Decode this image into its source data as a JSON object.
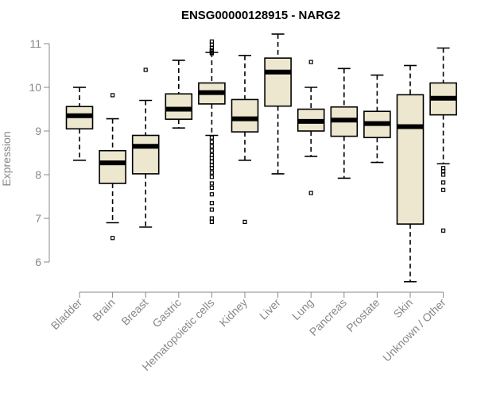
{
  "chart_data": {
    "type": "box",
    "title": "ENSG00000128915 - NARG2",
    "xlabel": "",
    "ylabel": "Expression",
    "ylim": [
      5.6,
      11.2
    ],
    "yticks": [
      6,
      7,
      8,
      9,
      10,
      11
    ],
    "ytick_labels": [
      "6",
      "7",
      "8",
      "9",
      "10",
      "11"
    ],
    "grid": false,
    "legend": "none",
    "colors": {
      "box_fill": "#ede7cf",
      "stroke": "#000000",
      "axis": "#888888"
    },
    "categories": [
      "Bladder",
      "Brain",
      "Breast",
      "Gastric",
      "Hematopoietic cells",
      "Kidney",
      "Liver",
      "Lung",
      "Pancreas",
      "Prostate",
      "Skin",
      "Unknown / Other"
    ],
    "boxes": [
      {
        "category": "Bladder",
        "whisker_low": 8.33,
        "q1": 9.05,
        "median": 9.35,
        "q3": 9.56,
        "whisker_high": 10.0,
        "outliers": []
      },
      {
        "category": "Brain",
        "whisker_low": 6.9,
        "q1": 7.8,
        "median": 8.27,
        "q3": 8.55,
        "whisker_high": 9.28,
        "outliers": [
          9.82,
          6.55
        ]
      },
      {
        "category": "Breast",
        "whisker_low": 6.8,
        "q1": 8.02,
        "median": 8.65,
        "q3": 8.9,
        "whisker_high": 9.7,
        "outliers": [
          10.4
        ]
      },
      {
        "category": "Gastric",
        "whisker_low": 9.07,
        "q1": 9.27,
        "median": 9.5,
        "q3": 9.85,
        "whisker_high": 10.62,
        "outliers": []
      },
      {
        "category": "Hematopoietic cells",
        "whisker_low": 8.9,
        "q1": 9.62,
        "median": 9.88,
        "q3": 10.1,
        "whisker_high": 10.8,
        "outliers": [
          11.05,
          10.98,
          10.9,
          10.85,
          10.8,
          10.78,
          8.85,
          8.75,
          8.65,
          8.55,
          8.45,
          8.38,
          8.3,
          8.22,
          8.15,
          8.05,
          7.95,
          7.8,
          7.7,
          7.55,
          7.35,
          7.2,
          7.0,
          6.92
        ]
      },
      {
        "category": "Kidney",
        "whisker_low": 8.33,
        "q1": 8.98,
        "median": 9.28,
        "q3": 9.72,
        "whisker_high": 10.73,
        "outliers": [
          6.92
        ]
      },
      {
        "category": "Liver",
        "whisker_low": 8.02,
        "q1": 9.57,
        "median": 10.35,
        "q3": 10.67,
        "whisker_high": 11.22,
        "outliers": []
      },
      {
        "category": "Lung",
        "whisker_low": 8.42,
        "q1": 9.0,
        "median": 9.22,
        "q3": 9.5,
        "whisker_high": 10.0,
        "outliers": [
          10.58,
          7.58
        ]
      },
      {
        "category": "Pancreas",
        "whisker_low": 7.92,
        "q1": 8.88,
        "median": 9.25,
        "q3": 9.55,
        "whisker_high": 10.43,
        "outliers": []
      },
      {
        "category": "Prostate",
        "whisker_low": 8.28,
        "q1": 8.85,
        "median": 9.17,
        "q3": 9.45,
        "whisker_high": 10.28,
        "outliers": []
      },
      {
        "category": "Skin",
        "whisker_low": 5.55,
        "q1": 6.87,
        "median": 9.1,
        "q3": 9.83,
        "whisker_high": 10.5,
        "outliers": []
      },
      {
        "category": "Unknown / Other",
        "whisker_low": 8.25,
        "q1": 9.37,
        "median": 9.75,
        "q3": 10.1,
        "whisker_high": 10.9,
        "outliers": [
          8.15,
          8.08,
          8.0,
          7.82,
          7.65,
          6.72
        ]
      }
    ]
  }
}
